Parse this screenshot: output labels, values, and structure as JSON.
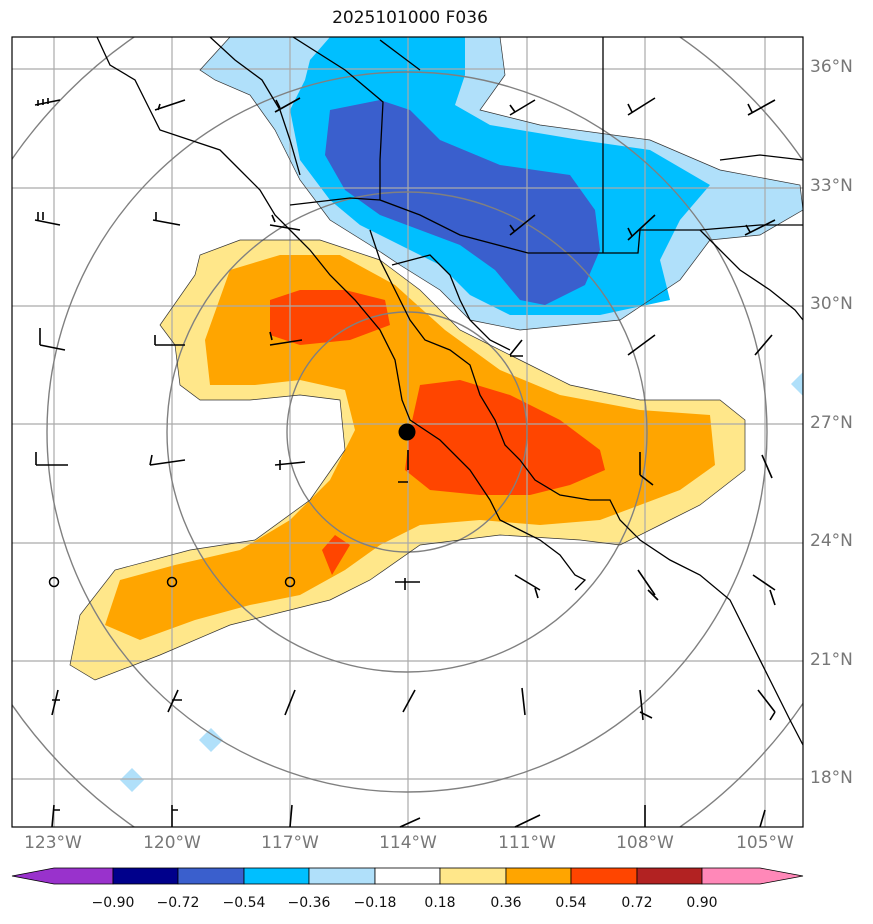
{
  "title": "2025101000 F036",
  "lat_labels": [
    "36°N",
    "33°N",
    "30°N",
    "27°N",
    "24°N",
    "21°N",
    "18°N"
  ],
  "lon_labels": [
    "123°W",
    "120°W",
    "117°W",
    "114°W",
    "111°W",
    "108°W",
    "105°W"
  ],
  "colorbar": {
    "ticks": [
      "−0.90",
      "−0.72",
      "−0.54",
      "−0.36",
      "−0.18",
      "0.18",
      "0.36",
      "0.54",
      "0.72",
      "0.90"
    ],
    "colors": [
      "#9932cc",
      "#00008b",
      "#3a5fcd",
      "#00bfff",
      "#b0e0fa",
      "#ffffff",
      "#ffe78a",
      "#ffa500",
      "#ff4500",
      "#b22222",
      "#ff88b8"
    ]
  },
  "colors": {
    "pos_lightyellow": "#ffe78a",
    "pos_orange": "#ffa500",
    "pos_redorange": "#ff4500",
    "neg_lightblue": "#b0e0fa",
    "neg_skyblue": "#00bfff",
    "neg_royalblue": "#3a5fcd",
    "grid": "#aaaaaa",
    "range_rings": "#808080"
  }
}
